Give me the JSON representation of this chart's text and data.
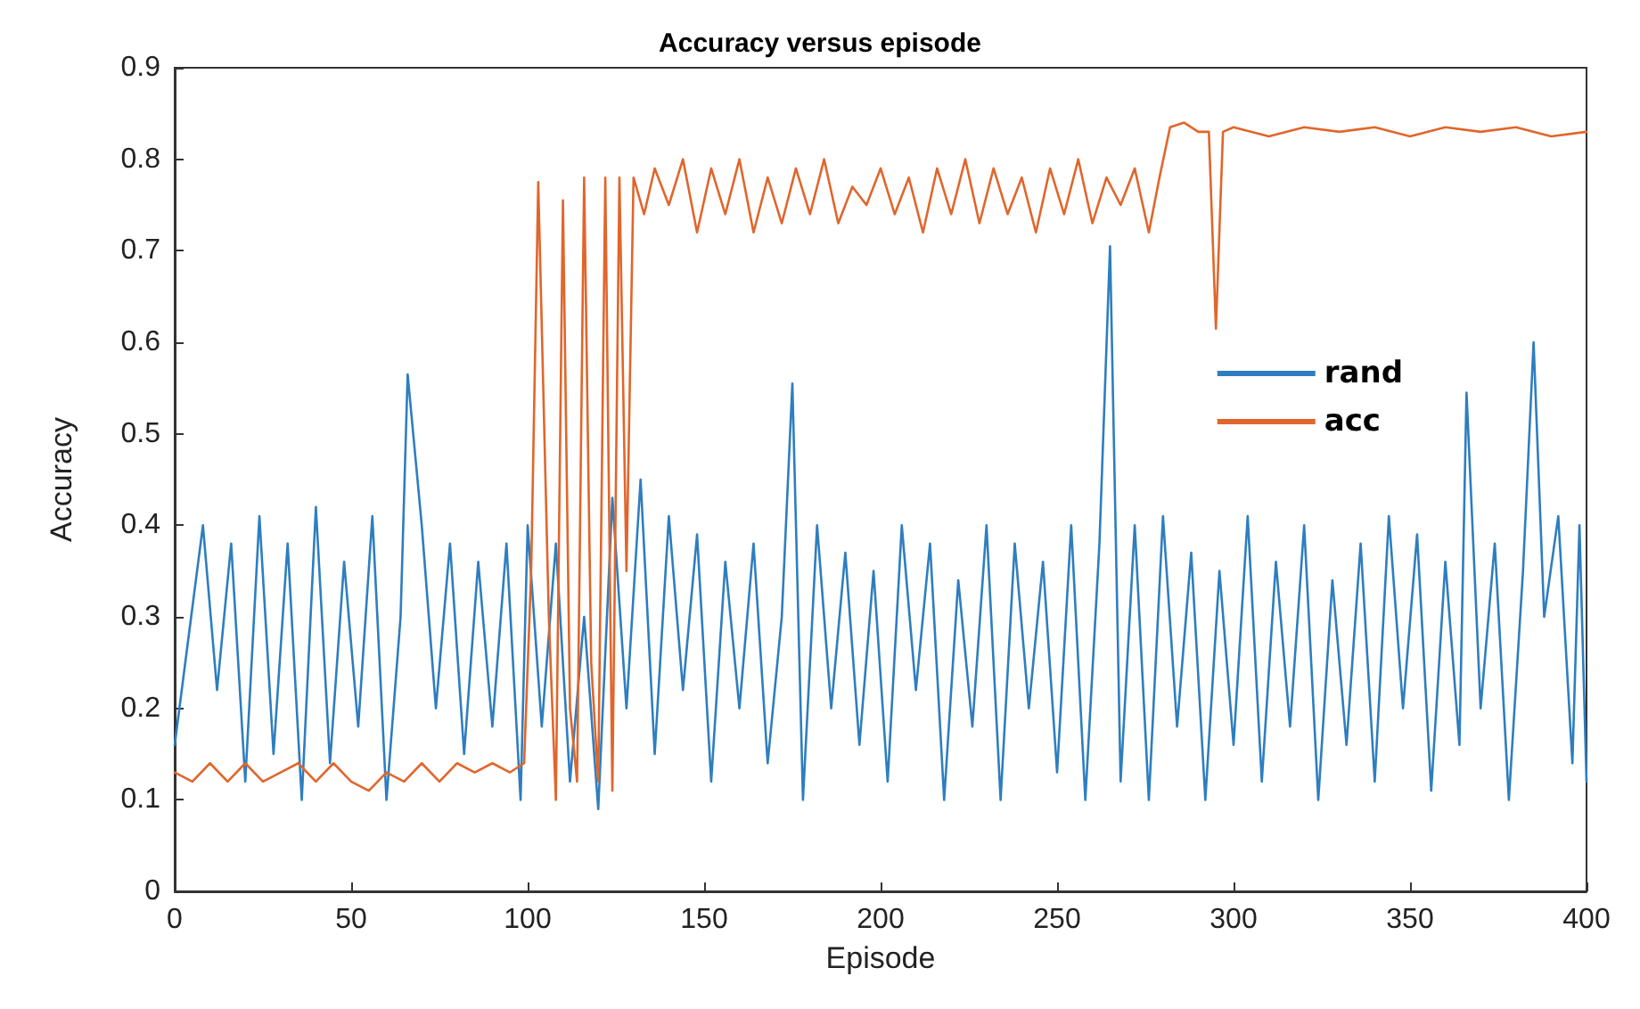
{
  "chart_data": {
    "type": "line",
    "title": "Accuracy versus episode",
    "xlabel": "Episode",
    "ylabel": "Accuracy",
    "xlim": [
      0,
      400
    ],
    "xticks": [
      0,
      50,
      100,
      150,
      200,
      250,
      300,
      350,
      400
    ],
    "ylim": [
      0,
      0.9
    ],
    "yticks": [
      0,
      0.1,
      0.2,
      0.3,
      0.4,
      0.5,
      0.6,
      0.7,
      0.8,
      0.9
    ],
    "legend": "right",
    "marker": "none",
    "line_style": "solid",
    "series": [
      {
        "name": "rand",
        "color": "#2e7ebf",
        "x": [
          0,
          4,
          8,
          12,
          16,
          20,
          24,
          28,
          32,
          36,
          40,
          44,
          48,
          52,
          56,
          60,
          64,
          66,
          70,
          74,
          78,
          82,
          86,
          90,
          94,
          98,
          100,
          104,
          108,
          112,
          116,
          120,
          124,
          128,
          132,
          136,
          140,
          144,
          148,
          152,
          156,
          160,
          164,
          168,
          172,
          175,
          178,
          182,
          186,
          190,
          194,
          198,
          202,
          206,
          210,
          214,
          218,
          222,
          226,
          230,
          234,
          238,
          242,
          246,
          250,
          254,
          258,
          262,
          265,
          268,
          272,
          276,
          280,
          284,
          288,
          292,
          296,
          300,
          304,
          308,
          312,
          316,
          320,
          324,
          328,
          332,
          336,
          340,
          344,
          348,
          352,
          356,
          360,
          364,
          366,
          370,
          374,
          378,
          382,
          385,
          388,
          392,
          396,
          398,
          400
        ],
        "values": [
          0.16,
          0.28,
          0.4,
          0.22,
          0.38,
          0.12,
          0.41,
          0.15,
          0.38,
          0.1,
          0.42,
          0.14,
          0.36,
          0.18,
          0.41,
          0.1,
          0.3,
          0.565,
          0.4,
          0.2,
          0.38,
          0.15,
          0.36,
          0.18,
          0.38,
          0.1,
          0.4,
          0.18,
          0.38,
          0.12,
          0.3,
          0.09,
          0.43,
          0.2,
          0.45,
          0.15,
          0.41,
          0.22,
          0.39,
          0.12,
          0.36,
          0.2,
          0.38,
          0.14,
          0.3,
          0.555,
          0.1,
          0.4,
          0.2,
          0.37,
          0.16,
          0.35,
          0.12,
          0.4,
          0.22,
          0.38,
          0.1,
          0.34,
          0.18,
          0.4,
          0.1,
          0.38,
          0.2,
          0.36,
          0.13,
          0.4,
          0.1,
          0.38,
          0.705,
          0.12,
          0.4,
          0.1,
          0.41,
          0.18,
          0.37,
          0.1,
          0.35,
          0.16,
          0.41,
          0.12,
          0.36,
          0.18,
          0.4,
          0.1,
          0.34,
          0.16,
          0.38,
          0.12,
          0.41,
          0.2,
          0.39,
          0.11,
          0.36,
          0.16,
          0.545,
          0.2,
          0.38,
          0.1,
          0.35,
          0.6,
          0.3,
          0.41,
          0.14,
          0.4,
          0.12
        ]
      },
      {
        "name": "acc",
        "color": "#e0662c",
        "x": [
          0,
          5,
          10,
          15,
          20,
          25,
          30,
          35,
          40,
          45,
          50,
          55,
          60,
          65,
          70,
          75,
          80,
          85,
          90,
          95,
          99,
          101,
          103,
          106,
          108,
          110,
          112,
          114,
          116,
          118,
          120,
          122,
          124,
          126,
          128,
          130,
          133,
          136,
          140,
          144,
          148,
          152,
          156,
          160,
          164,
          168,
          172,
          176,
          180,
          184,
          188,
          192,
          196,
          200,
          204,
          208,
          212,
          216,
          220,
          224,
          228,
          232,
          236,
          240,
          244,
          248,
          252,
          256,
          260,
          264,
          268,
          272,
          276,
          279,
          282,
          286,
          290,
          293,
          295,
          297,
          300,
          310,
          320,
          330,
          340,
          350,
          360,
          370,
          380,
          390,
          400
        ],
        "values": [
          0.13,
          0.12,
          0.14,
          0.12,
          0.14,
          0.12,
          0.13,
          0.14,
          0.12,
          0.14,
          0.12,
          0.11,
          0.13,
          0.12,
          0.14,
          0.12,
          0.14,
          0.13,
          0.14,
          0.13,
          0.14,
          0.35,
          0.775,
          0.3,
          0.1,
          0.755,
          0.2,
          0.12,
          0.78,
          0.25,
          0.12,
          0.78,
          0.11,
          0.78,
          0.35,
          0.78,
          0.74,
          0.79,
          0.75,
          0.8,
          0.72,
          0.79,
          0.74,
          0.8,
          0.72,
          0.78,
          0.73,
          0.79,
          0.74,
          0.8,
          0.73,
          0.77,
          0.75,
          0.79,
          0.74,
          0.78,
          0.72,
          0.79,
          0.74,
          0.8,
          0.73,
          0.79,
          0.74,
          0.78,
          0.72,
          0.79,
          0.74,
          0.8,
          0.73,
          0.78,
          0.75,
          0.79,
          0.72,
          0.78,
          0.835,
          0.84,
          0.83,
          0.83,
          0.615,
          0.83,
          0.835,
          0.825,
          0.835,
          0.83,
          0.835,
          0.825,
          0.835,
          0.83,
          0.835,
          0.825,
          0.83
        ]
      }
    ]
  }
}
